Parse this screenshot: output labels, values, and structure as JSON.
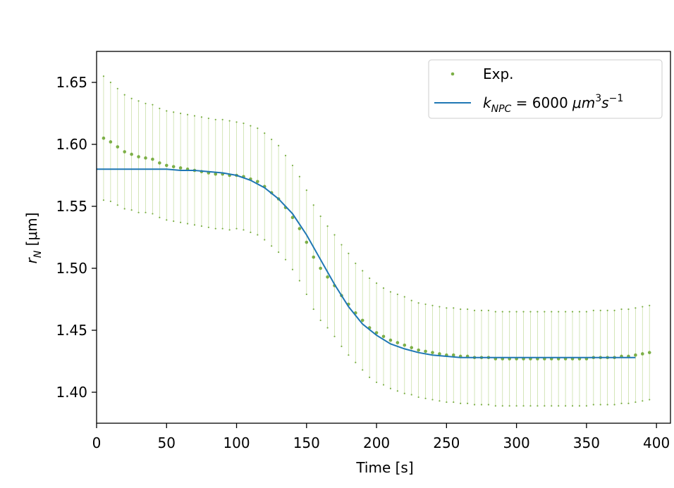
{
  "chart_data": {
    "type": "scatter",
    "xlabel": "Time [s]",
    "ylabel_main": "r",
    "ylabel_sub": "N",
    "ylabel_unit": " [μm]",
    "xlim": [
      0,
      410
    ],
    "ylim": [
      1.375,
      1.675
    ],
    "xticks": [
      0,
      50,
      100,
      150,
      200,
      250,
      300,
      350,
      400
    ],
    "yticks": [
      1.4,
      1.45,
      1.5,
      1.55,
      1.6,
      1.65
    ],
    "xtick_labels": [
      "0",
      "50",
      "100",
      "150",
      "200",
      "250",
      "300",
      "350",
      "400"
    ],
    "ytick_labels": [
      "1.40",
      "1.45",
      "1.50",
      "1.55",
      "1.60",
      "1.65"
    ],
    "grid": false,
    "legend_position": "top-right",
    "colors": {
      "exp": "#7caf46",
      "errorbar": "#c9dfa8",
      "fit": "#1f77b4"
    },
    "series": [
      {
        "name": "Exp.",
        "kind": "scatter-with-errorbars",
        "x": [
          5,
          10,
          15,
          20,
          25,
          30,
          35,
          40,
          45,
          50,
          55,
          60,
          65,
          70,
          75,
          80,
          85,
          90,
          95,
          100,
          105,
          110,
          115,
          120,
          125,
          130,
          135,
          140,
          145,
          150,
          155,
          160,
          165,
          170,
          175,
          180,
          185,
          190,
          195,
          200,
          205,
          210,
          215,
          220,
          225,
          230,
          235,
          240,
          245,
          250,
          255,
          260,
          265,
          270,
          275,
          280,
          285,
          290,
          295,
          300,
          305,
          310,
          315,
          320,
          325,
          330,
          335,
          340,
          345,
          350,
          355,
          360,
          365,
          370,
          375,
          380,
          385,
          390,
          395
        ],
        "y": [
          1.605,
          1.602,
          1.598,
          1.594,
          1.592,
          1.59,
          1.589,
          1.588,
          1.585,
          1.583,
          1.582,
          1.581,
          1.58,
          1.579,
          1.578,
          1.577,
          1.576,
          1.576,
          1.575,
          1.575,
          1.574,
          1.572,
          1.57,
          1.566,
          1.561,
          1.556,
          1.549,
          1.541,
          1.532,
          1.521,
          1.509,
          1.5,
          1.493,
          1.486,
          1.478,
          1.471,
          1.464,
          1.458,
          1.452,
          1.448,
          1.445,
          1.442,
          1.44,
          1.438,
          1.436,
          1.434,
          1.433,
          1.432,
          1.431,
          1.43,
          1.43,
          1.429,
          1.429,
          1.428,
          1.428,
          1.428,
          1.427,
          1.427,
          1.427,
          1.427,
          1.427,
          1.427,
          1.427,
          1.427,
          1.427,
          1.427,
          1.427,
          1.427,
          1.427,
          1.427,
          1.428,
          1.428,
          1.428,
          1.428,
          1.429,
          1.429,
          1.43,
          1.431,
          1.432
        ],
        "yerr": [
          0.05,
          0.048,
          0.047,
          0.046,
          0.045,
          0.045,
          0.044,
          0.044,
          0.044,
          0.044,
          0.044,
          0.044,
          0.044,
          0.044,
          0.044,
          0.044,
          0.044,
          0.044,
          0.044,
          0.043,
          0.043,
          0.043,
          0.043,
          0.043,
          0.043,
          0.043,
          0.042,
          0.042,
          0.042,
          0.042,
          0.042,
          0.042,
          0.041,
          0.041,
          0.041,
          0.041,
          0.04,
          0.04,
          0.04,
          0.04,
          0.039,
          0.039,
          0.039,
          0.039,
          0.038,
          0.038,
          0.038,
          0.038,
          0.038,
          0.038,
          0.038,
          0.038,
          0.038,
          0.038,
          0.038,
          0.038,
          0.038,
          0.038,
          0.038,
          0.038,
          0.038,
          0.038,
          0.038,
          0.038,
          0.038,
          0.038,
          0.038,
          0.038,
          0.038,
          0.038,
          0.038,
          0.038,
          0.038,
          0.038,
          0.038,
          0.038,
          0.038,
          0.038,
          0.038
        ]
      },
      {
        "name_prefix": "k",
        "name_sub": "NPC",
        "name_value": " = 6000 ",
        "name_unit": "μm",
        "name_sup1": "3",
        "name_unit2": "s",
        "name_sup2": "−1",
        "kind": "line",
        "x": [
          0,
          10,
          20,
          30,
          40,
          50,
          60,
          70,
          80,
          90,
          100,
          110,
          120,
          130,
          140,
          150,
          160,
          170,
          180,
          190,
          200,
          210,
          220,
          230,
          240,
          250,
          260,
          270,
          280,
          290,
          300,
          310,
          320,
          330,
          340,
          350,
          360,
          370,
          380,
          385
        ],
        "y": [
          1.58,
          1.58,
          1.58,
          1.58,
          1.58,
          1.58,
          1.579,
          1.579,
          1.578,
          1.577,
          1.575,
          1.571,
          1.565,
          1.556,
          1.544,
          1.527,
          1.507,
          1.487,
          1.469,
          1.455,
          1.446,
          1.439,
          1.435,
          1.432,
          1.43,
          1.429,
          1.428,
          1.428,
          1.428,
          1.428,
          1.428,
          1.428,
          1.428,
          1.428,
          1.428,
          1.428,
          1.428,
          1.428,
          1.428,
          1.428
        ]
      }
    ]
  }
}
